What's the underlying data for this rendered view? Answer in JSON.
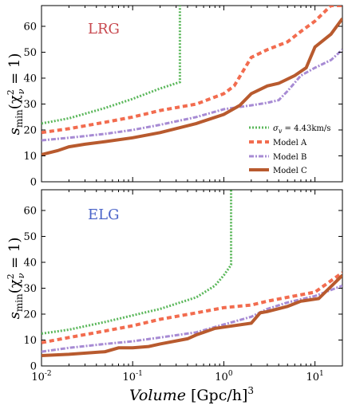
{
  "x_axis": {
    "label_main": "Volume",
    "label_unit": "[Gpc/h]",
    "label_power": "3",
    "log_scale": true,
    "range": [
      0.01,
      20
    ],
    "ticks": [
      {
        "value": 0.01,
        "base": "10",
        "exp": "-2"
      },
      {
        "value": 0.1,
        "base": "10",
        "exp": "-1"
      },
      {
        "value": 1,
        "base": "10",
        "exp": "0"
      },
      {
        "value": 10,
        "base": "10",
        "exp": "1"
      }
    ]
  },
  "y_axis": {
    "label_base": "s",
    "label_sub": "min",
    "label_paren": "(χ",
    "label_sup": "2",
    "label_nu": "ν",
    "label_end": " = 1)",
    "range": [
      0,
      68
    ],
    "ticks": [
      0,
      10,
      20,
      30,
      40,
      50,
      60
    ]
  },
  "legend": {
    "placement": "lower-right of top panel",
    "entries": [
      {
        "series": "sigma",
        "label": "σv = 4.43km/s",
        "label_main": "σ",
        "label_sub": "v",
        "label_rest": " = 4.43km/s"
      },
      {
        "series": "A",
        "label": "Model A"
      },
      {
        "series": "B",
        "label": "Model B"
      },
      {
        "series": "C",
        "label": "Model C"
      }
    ]
  },
  "colors": {
    "sigma": "#5cb85c",
    "A": "#f26c4f",
    "B": "#a78bd4",
    "C": "#b85a2e"
  },
  "chart_data": [
    {
      "type": "line",
      "panel_label": "LRG",
      "panel_label_color": "#c8494f",
      "x_scale": "log",
      "xlim": [
        0.01,
        20
      ],
      "ylim": [
        0,
        68
      ],
      "series": [
        {
          "name": "σv = 4.43km/s",
          "key": "sigma",
          "x": [
            0.01,
            0.02,
            0.05,
            0.1,
            0.2,
            0.33,
            0.33
          ],
          "y": [
            22.5,
            24.5,
            28.5,
            32,
            36,
            38.5,
            68
          ]
        },
        {
          "name": "Model A",
          "key": "A",
          "x": [
            0.01,
            0.02,
            0.05,
            0.1,
            0.2,
            0.5,
            1,
            1.3,
            2,
            3,
            5,
            7,
            10,
            15,
            20
          ],
          "y": [
            19,
            20.5,
            23,
            25,
            27.5,
            30,
            34,
            37,
            48,
            51,
            54,
            58,
            62,
            68,
            68
          ]
        },
        {
          "name": "Model B",
          "key": "B",
          "x": [
            0.01,
            0.02,
            0.05,
            0.1,
            0.2,
            0.5,
            1,
            2,
            3,
            4,
            5,
            7,
            10,
            15,
            20
          ],
          "y": [
            16,
            17,
            18.5,
            20,
            22,
            25,
            28,
            29.5,
            30.5,
            31.5,
            35,
            41,
            44,
            47,
            51
          ]
        },
        {
          "name": "Model C",
          "key": "C",
          "x": [
            0.01,
            0.015,
            0.02,
            0.03,
            0.05,
            0.1,
            0.2,
            0.5,
            1,
            1.5,
            2,
            3,
            4,
            6,
            8,
            10,
            15,
            20
          ],
          "y": [
            10.5,
            12,
            13.5,
            14.5,
            15.5,
            17,
            19,
            22.5,
            26,
            29.5,
            34,
            37,
            38,
            41,
            44,
            52,
            57,
            63
          ]
        }
      ]
    },
    {
      "type": "line",
      "panel_label": "ELG",
      "panel_label_color": "#4a63c8",
      "x_scale": "log",
      "xlim": [
        0.01,
        20
      ],
      "ylim": [
        0,
        68
      ],
      "series": [
        {
          "name": "σv = 4.43km/s",
          "key": "sigma",
          "x": [
            0.01,
            0.02,
            0.05,
            0.1,
            0.2,
            0.5,
            0.8,
            1,
            1.2,
            1.2
          ],
          "y": [
            12.5,
            14,
            17,
            19.5,
            22,
            26.5,
            31,
            35,
            39,
            68
          ]
        },
        {
          "name": "Model A",
          "key": "A",
          "x": [
            0.01,
            0.02,
            0.05,
            0.1,
            0.2,
            0.5,
            1,
            2,
            3,
            5,
            10,
            20
          ],
          "y": [
            9,
            11,
            13.5,
            15.5,
            18,
            20.5,
            22.5,
            23.5,
            25,
            26.5,
            28.5,
            36
          ]
        },
        {
          "name": "Model B",
          "key": "B",
          "x": [
            0.01,
            0.02,
            0.05,
            0.1,
            0.2,
            0.5,
            1,
            2,
            3,
            5,
            10,
            20
          ],
          "y": [
            5.5,
            7,
            8.5,
            9.5,
            11,
            13,
            16,
            19,
            22,
            24.5,
            27,
            31
          ]
        },
        {
          "name": "Model C",
          "key": "C",
          "x": [
            0.01,
            0.02,
            0.05,
            0.07,
            0.1,
            0.15,
            0.2,
            0.4,
            0.5,
            0.8,
            1,
            2,
            2.5,
            3,
            5,
            7,
            11,
            20
          ],
          "y": [
            4,
            4.5,
            5.5,
            7,
            7,
            7.5,
            8.5,
            10.5,
            12,
            14.5,
            15,
            16.5,
            20.5,
            21,
            23,
            25,
            26,
            35
          ]
        }
      ]
    }
  ]
}
